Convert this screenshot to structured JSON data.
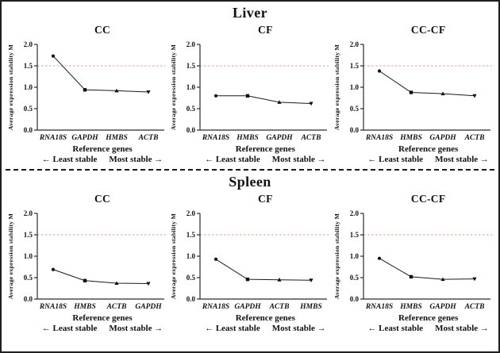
{
  "chart_data": {
    "type": "line",
    "ylabel": "Average expression stability M",
    "xlabel": "Reference genes",
    "footnote_left": "← Least stable",
    "footnote_right": "Most stable →",
    "ylim": [
      0.0,
      2.0
    ],
    "yticks": [
      "0.0",
      "0.5",
      "1.0",
      "1.5",
      "2.0"
    ],
    "grid": false,
    "legend": "none",
    "threshold_line": {
      "value": 1.5,
      "style": "dotted",
      "color": "#df9d9d"
    },
    "line_color": "#1a1a1a",
    "marker_color": "#111111",
    "marker_shapes": [
      "circle",
      "square",
      "triangle-up",
      "triangle-down"
    ],
    "sections": [
      {
        "title": "Liver",
        "panels": [
          {
            "title": "CC",
            "categories": [
              "RNA18S",
              "GAPDH",
              "HMBS",
              "ACTB"
            ],
            "values": [
              1.73,
              0.94,
              0.92,
              0.89
            ]
          },
          {
            "title": "CF",
            "categories": [
              "RNA18S",
              "HMBS",
              "GAPDH",
              "ACTB"
            ],
            "values": [
              0.8,
              0.8,
              0.65,
              0.62
            ]
          },
          {
            "title": "CC-CF",
            "categories": [
              "RNA18S",
              "HMBS",
              "GAPDH",
              "ACTB"
            ],
            "values": [
              1.38,
              0.88,
              0.85,
              0.8
            ]
          }
        ]
      },
      {
        "title": "Spleen",
        "panels": [
          {
            "title": "CC",
            "categories": [
              "RNA18S",
              "HMBS",
              "ACTB",
              "GAPDH"
            ],
            "values": [
              0.69,
              0.43,
              0.37,
              0.36
            ]
          },
          {
            "title": "CF",
            "categories": [
              "RNA18S",
              "GAPDH",
              "ACTB",
              "HMBS"
            ],
            "values": [
              0.93,
              0.46,
              0.45,
              0.44
            ]
          },
          {
            "title": "CC-CF",
            "categories": [
              "RNA18S",
              "HMBS",
              "GAPDH",
              "ACTB"
            ],
            "values": [
              0.95,
              0.52,
              0.46,
              0.47
            ]
          }
        ]
      }
    ]
  }
}
